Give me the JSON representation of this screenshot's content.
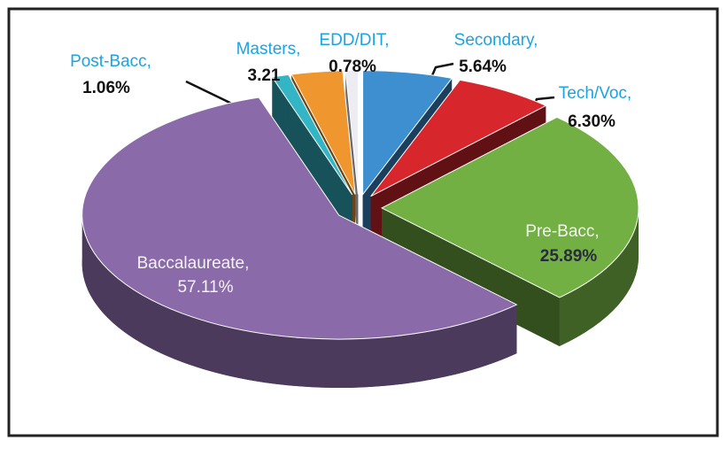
{
  "chart_data": {
    "type": "pie",
    "categories": [
      "Secondary,",
      "Tech/Voc,",
      "Pre-Bacc,",
      "Baccalaureate,",
      "Post-Bacc,",
      "Masters,",
      "EDD/DIT,"
    ],
    "values": [
      5.64,
      6.3,
      25.89,
      57.11,
      1.06,
      3.21,
      0.78
    ],
    "value_labels": [
      "5.64%",
      "6.30%",
      "25.89%",
      "57.11%",
      "1.06%",
      "3.21",
      "0.78%"
    ],
    "colors": [
      "#3d8fcf",
      "#d7262c",
      "#73b043",
      "#8a6aa9",
      "#33b5c6",
      "#f0962e",
      "#ececf2"
    ]
  }
}
